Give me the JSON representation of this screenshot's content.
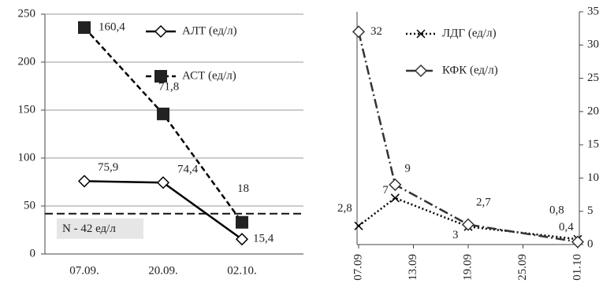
{
  "chart_data": [
    {
      "type": "line",
      "categories": [
        "07.09.",
        "20.09.",
        "02.10."
      ],
      "ylim": [
        0,
        250
      ],
      "yticks": [
        0,
        50,
        100,
        150,
        200,
        250
      ],
      "grid": true,
      "legend": "top-right",
      "reference_line": {
        "value": 42,
        "label": "N - 42 ед/л"
      },
      "series": [
        {
          "name": "АЛТ (ед/л)",
          "color": "#000000",
          "style": "solid",
          "marker": "diamond",
          "values": [
            75.9,
            74.4,
            15.4
          ],
          "value_labels": [
            "75,9",
            "74,4",
            "15,4"
          ]
        },
        {
          "name": "АСТ (ед/л)",
          "color": "#000000",
          "style": "dashed",
          "marker": "square",
          "values": [
            236,
            146,
            33
          ],
          "annotations": [
            "160,4",
            "71,8",
            "18"
          ]
        }
      ]
    },
    {
      "type": "line",
      "xlim": [
        0,
        24
      ],
      "xticks": [
        {
          "value": 0,
          "label": "07.09"
        },
        {
          "value": 6,
          "label": "13.09"
        },
        {
          "value": 12,
          "label": "19.09"
        },
        {
          "value": 18,
          "label": "25.09"
        },
        {
          "value": 24,
          "label": "01.10"
        }
      ],
      "ylim": [
        0,
        35
      ],
      "yticks": [
        0,
        5,
        10,
        15,
        20,
        25,
        30,
        35
      ],
      "grid": false,
      "legend": "top-right",
      "series": [
        {
          "name": "ЛДГ (ед/л)",
          "color": "#000000",
          "style": "dotted",
          "marker": "x",
          "x": [
            0,
            4,
            12,
            24
          ],
          "values": [
            2.8,
            7,
            2.7,
            0.8
          ],
          "value_labels": [
            "2,8",
            "7",
            "2,7",
            "0,8"
          ]
        },
        {
          "name": "КФК (ед/л)",
          "color": "#333333",
          "style": "dashdot",
          "marker": "diamond",
          "x": [
            0,
            4,
            12,
            24
          ],
          "values": [
            32,
            9,
            3,
            0.4
          ],
          "value_labels": [
            "32",
            "9",
            "3",
            "0,4"
          ]
        }
      ]
    }
  ]
}
